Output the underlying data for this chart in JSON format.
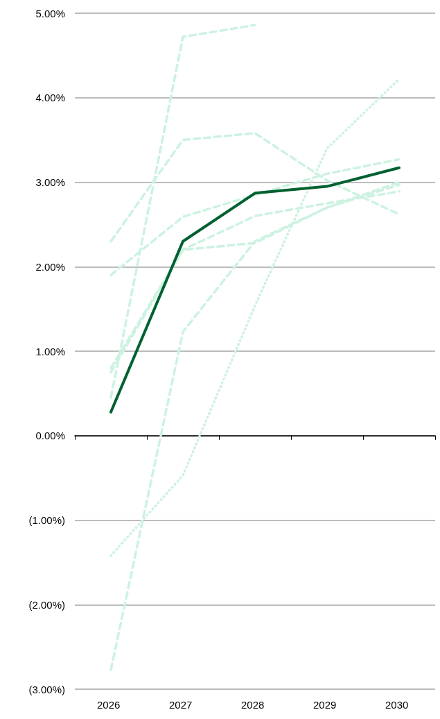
{
  "chart_data": {
    "type": "line",
    "categories": [
      "2026",
      "2027",
      "2028",
      "2029",
      "2030"
    ],
    "series": [
      {
        "color": "#cdf2e1",
        "line_style": "dashed",
        "values": [
          2.3,
          3.5,
          3.58,
          3.02,
          2.62
        ]
      },
      {
        "color": "#cdf2e1",
        "line_style": "dashed",
        "values": [
          1.9,
          2.59,
          2.85,
          3.1,
          3.27
        ]
      },
      {
        "color": "#cdf2e1",
        "line_style": "dashed",
        "values": [
          0.45,
          4.72,
          4.86,
          null,
          null
        ]
      },
      {
        "color": "#cdf2e1",
        "line_style": "dashed",
        "values": [
          0.8,
          2.2,
          2.6,
          2.75,
          2.89
        ]
      },
      {
        "color": "#cdf2e1",
        "line_style": "dashed",
        "values": [
          0.75,
          2.2,
          2.28,
          2.7,
          3.0
        ]
      },
      {
        "color": "#cdf2e1",
        "line_style": "dashed",
        "values": [
          -2.77,
          1.23,
          2.3,
          2.7,
          2.97
        ]
      },
      {
        "color": "#cdf2e1",
        "line_style": "dotted",
        "values": [
          -1.42,
          -0.47,
          1.54,
          3.4,
          4.22
        ]
      },
      {
        "color": "#006130",
        "line_style": "solid",
        "values": [
          0.28,
          2.3,
          2.87,
          2.95,
          3.17
        ]
      }
    ],
    "ylim": [
      -3,
      5
    ],
    "yticks": [
      {
        "value": -3,
        "label": "(3.00%)"
      },
      {
        "value": -2,
        "label": "(2.00%)"
      },
      {
        "value": -1,
        "label": "(1.00%)"
      },
      {
        "value": 0,
        "label": "0.00%"
      },
      {
        "value": 1,
        "label": "1.00%"
      },
      {
        "value": 2,
        "label": "2.00%"
      },
      {
        "value": 3,
        "label": "3.00%"
      },
      {
        "value": 4,
        "label": "4.00%"
      },
      {
        "value": 5,
        "label": "5.00%"
      }
    ],
    "grid": "y",
    "marker": "none"
  }
}
